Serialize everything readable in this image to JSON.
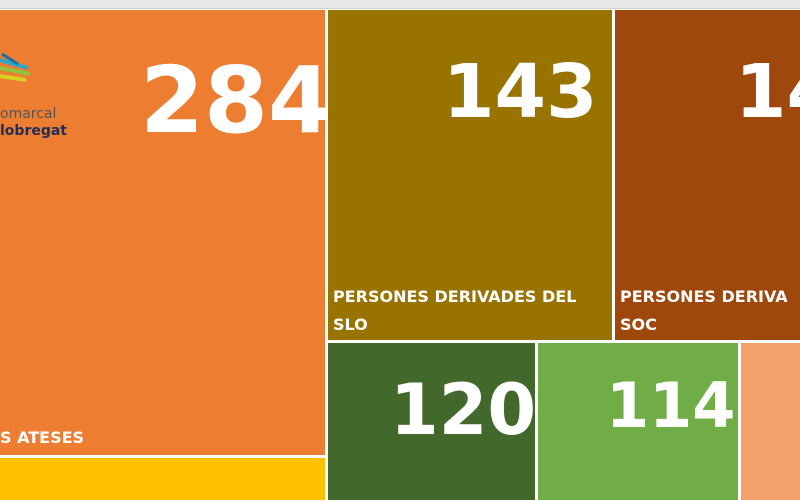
{
  "logo": {
    "line1": "omarcal",
    "line2": "lobregat"
  },
  "tiles": [
    {
      "value": 284,
      "label": [
        "S ATESES"
      ]
    },
    {
      "value": 143,
      "label": [
        "PERSONES DERIVADES DEL",
        "SLO"
      ]
    },
    {
      "value": 14,
      "label": [
        "PERSONES DERIVA",
        "SOC"
      ]
    },
    {
      "value": 120
    },
    {
      "value": 114
    }
  ]
}
